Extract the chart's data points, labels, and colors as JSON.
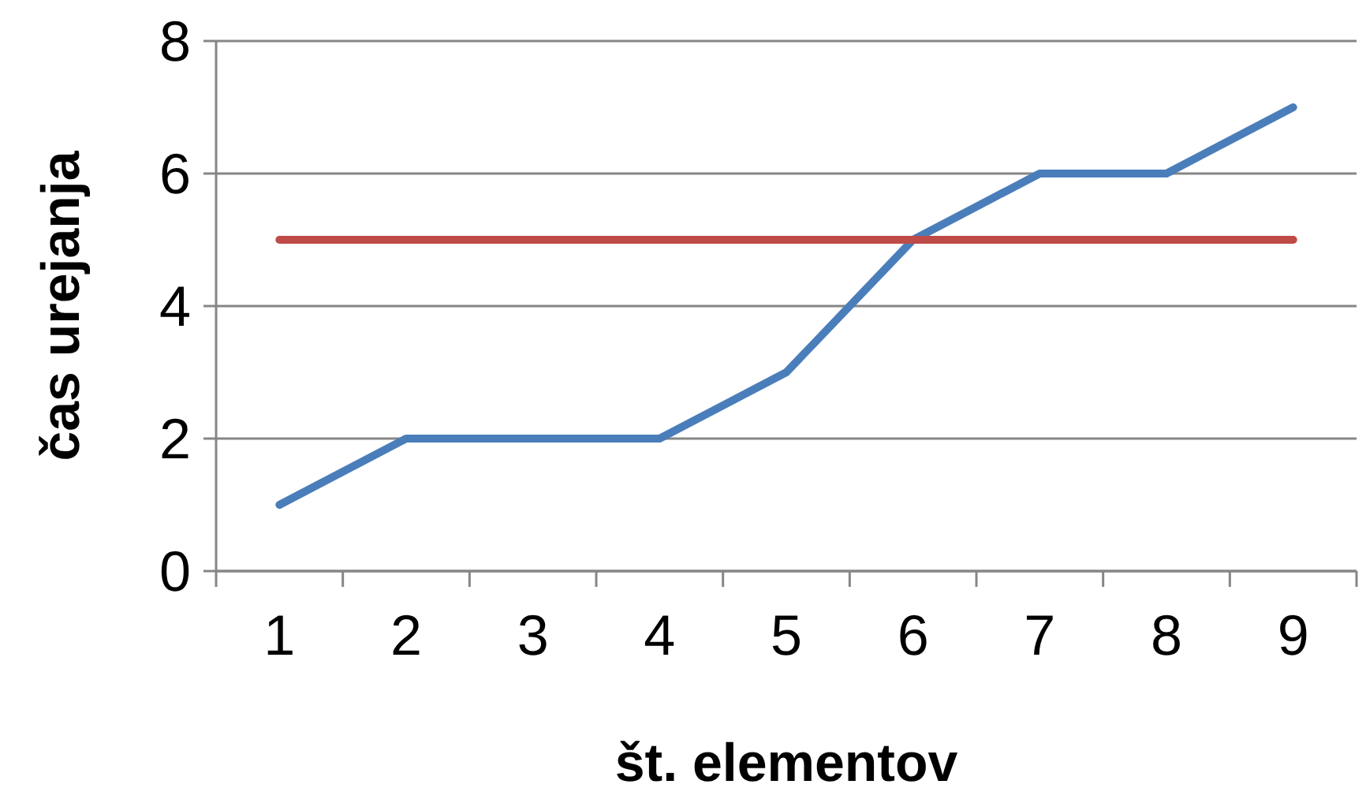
{
  "chart_data": {
    "type": "line",
    "xlabel": "št. elementov",
    "ylabel": "čas urejanja",
    "categories": [
      "1",
      "2",
      "3",
      "4",
      "5",
      "6",
      "7",
      "8",
      "9"
    ],
    "series": [
      {
        "color": "#4a7ebb",
        "values": [
          1,
          2,
          2,
          2,
          3,
          5,
          6,
          6,
          7
        ]
      },
      {
        "color": "#be4b48",
        "values": [
          5,
          5,
          5,
          5,
          5,
          5,
          5,
          5,
          5
        ]
      }
    ],
    "ylim": [
      0,
      8
    ],
    "yticks": [
      0,
      2,
      4,
      6,
      8
    ],
    "grid": "y",
    "marker": "none",
    "line_style": "solid"
  }
}
